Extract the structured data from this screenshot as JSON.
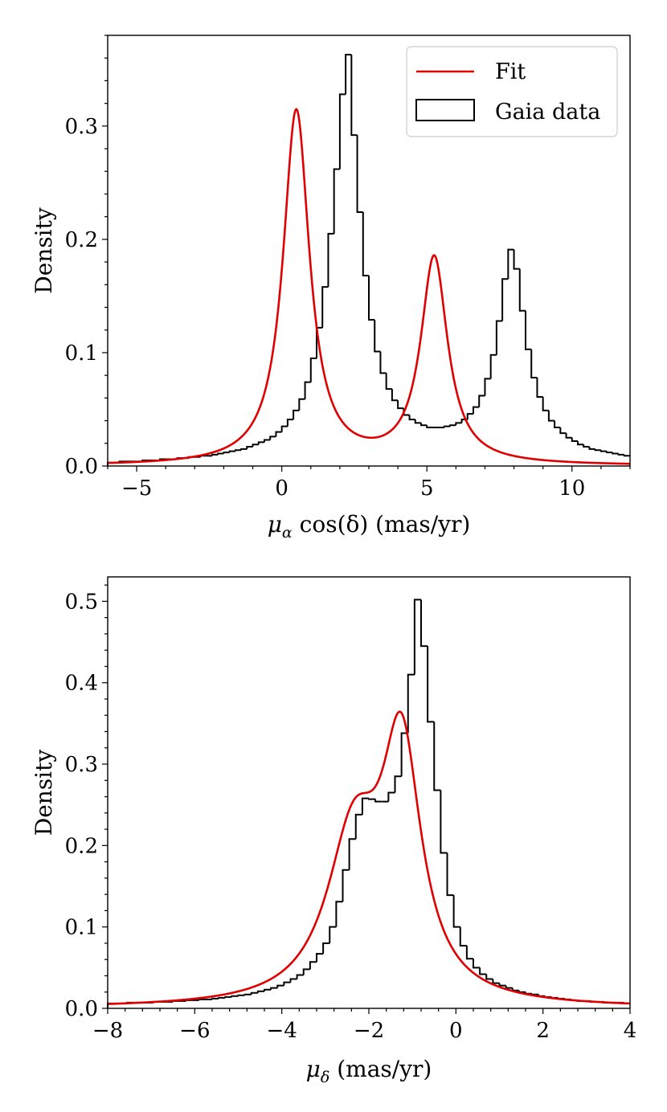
{
  "chart_data": [
    {
      "type": "histogram+line",
      "title": "",
      "xlabel_main": "μ",
      "xlabel_sub": "α",
      "xlabel_rest": " cos(δ) (mas/yr)",
      "ylabel": "Density",
      "xlim": [
        -6,
        12
      ],
      "ylim": [
        0,
        0.38
      ],
      "xticks": [
        -5,
        0,
        5,
        10
      ],
      "xtick_labels": [
        "−5",
        "0",
        "5",
        "10"
      ],
      "yticks": [
        0.0,
        0.1,
        0.2,
        0.3
      ],
      "ytick_labels": [
        "0.0",
        "0.1",
        "0.2",
        "0.3"
      ],
      "legend": {
        "position": "top-right",
        "fit_label": "Fit",
        "hist_label": "Gaia data"
      },
      "colors": {
        "fit": "#e00000",
        "hist": "#000000"
      },
      "fit_model": {
        "components": [
          {
            "weight": 0.54,
            "center": 0.5,
            "width": 0.55
          },
          {
            "weight": 0.32,
            "center": 5.25,
            "width": 0.56
          }
        ]
      },
      "hist_bins": {
        "start": -6,
        "width": 0.2,
        "values": [
          0.003,
          0.003,
          0.004,
          0.004,
          0.004,
          0.004,
          0.005,
          0.005,
          0.005,
          0.006,
          0.006,
          0.006,
          0.007,
          0.007,
          0.008,
          0.008,
          0.009,
          0.009,
          0.01,
          0.011,
          0.012,
          0.013,
          0.014,
          0.015,
          0.017,
          0.019,
          0.021,
          0.023,
          0.026,
          0.03,
          0.035,
          0.041,
          0.049,
          0.059,
          0.074,
          0.095,
          0.122,
          0.158,
          0.205,
          0.262,
          0.328,
          0.363,
          0.292,
          0.224,
          0.168,
          0.129,
          0.101,
          0.082,
          0.068,
          0.058,
          0.051,
          0.045,
          0.041,
          0.038,
          0.036,
          0.034,
          0.034,
          0.034,
          0.035,
          0.036,
          0.038,
          0.041,
          0.046,
          0.052,
          0.062,
          0.077,
          0.098,
          0.128,
          0.165,
          0.191,
          0.174,
          0.137,
          0.103,
          0.078,
          0.061,
          0.049,
          0.04,
          0.034,
          0.029,
          0.025,
          0.022,
          0.019,
          0.017,
          0.015,
          0.014,
          0.013,
          0.012,
          0.011,
          0.01,
          0.009
        ]
      }
    },
    {
      "type": "histogram+line",
      "title": "",
      "xlabel_main": "μ",
      "xlabel_sub": "δ",
      "xlabel_rest": " (mas/yr)",
      "ylabel": "Density",
      "xlim": [
        -8,
        4
      ],
      "ylim": [
        0,
        0.53
      ],
      "xticks": [
        -8,
        -6,
        -4,
        -2,
        0,
        2,
        4
      ],
      "xtick_labels": [
        "−8",
        "−6",
        "−4",
        "−2",
        "0",
        "2",
        "4"
      ],
      "yticks": [
        0.0,
        0.1,
        0.2,
        0.3,
        0.4,
        0.5
      ],
      "ytick_labels": [
        "0.0",
        "0.1",
        "0.2",
        "0.3",
        "0.4",
        "0.5"
      ],
      "colors": {
        "fit": "#e00000",
        "hist": "#000000"
      },
      "fit_model": {
        "components": [
          {
            "weight": 0.46,
            "center": -2.35,
            "width": 0.75
          },
          {
            "weight": 0.52,
            "center": -1.25,
            "width": 0.55
          }
        ]
      },
      "hist_bins": {
        "start": -8,
        "width": 0.15,
        "values": [
          0.006,
          0.006,
          0.006,
          0.007,
          0.007,
          0.007,
          0.007,
          0.008,
          0.008,
          0.008,
          0.009,
          0.009,
          0.01,
          0.01,
          0.011,
          0.011,
          0.012,
          0.013,
          0.014,
          0.015,
          0.016,
          0.017,
          0.019,
          0.021,
          0.023,
          0.025,
          0.028,
          0.032,
          0.036,
          0.041,
          0.048,
          0.057,
          0.067,
          0.08,
          0.1,
          0.131,
          0.17,
          0.208,
          0.238,
          0.258,
          0.257,
          0.254,
          0.254,
          0.265,
          0.285,
          0.338,
          0.41,
          0.502,
          0.445,
          0.352,
          0.268,
          0.191,
          0.139,
          0.1,
          0.077,
          0.061,
          0.05,
          0.042,
          0.036,
          0.031,
          0.028,
          0.025,
          0.022,
          0.02,
          0.018,
          0.017,
          0.015,
          0.014,
          0.013,
          0.012,
          0.011,
          0.01,
          0.009,
          0.009,
          0.008,
          0.008,
          0.007,
          0.007,
          0.007,
          0.006
        ]
      }
    }
  ]
}
